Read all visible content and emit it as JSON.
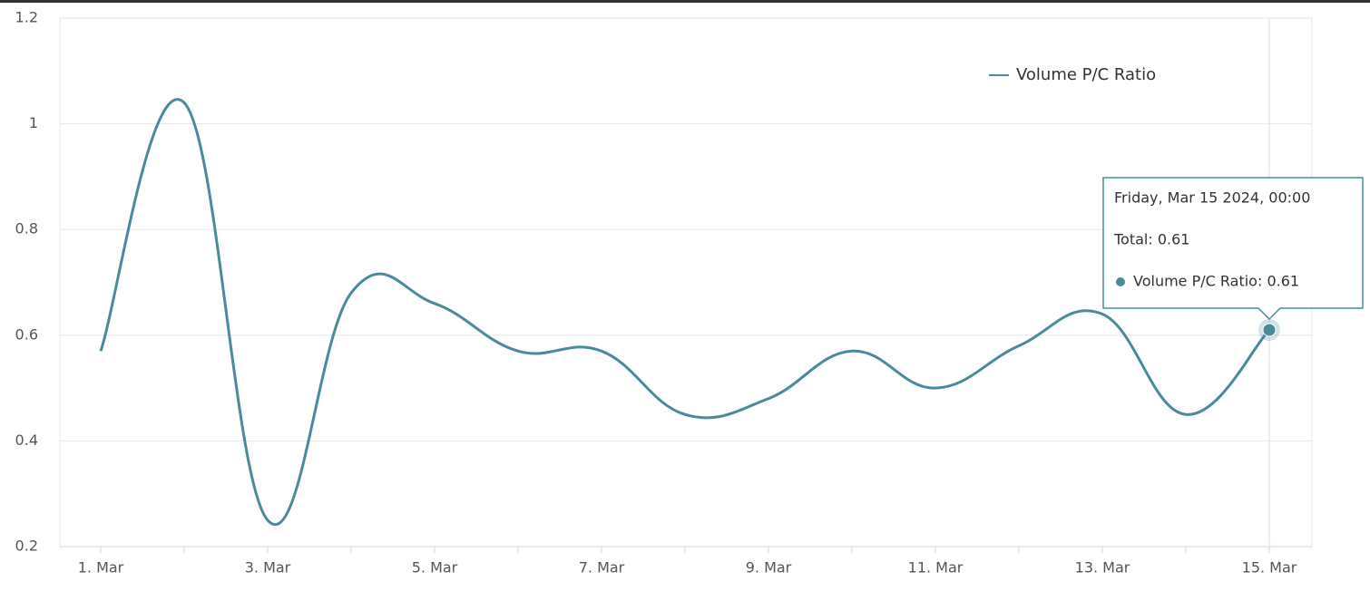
{
  "chart_data": {
    "type": "line",
    "categories": [
      "1. Mar",
      null,
      "3. Mar",
      null,
      "5. Mar",
      null,
      "7. Mar",
      null,
      "9. Mar",
      null,
      "11. Mar",
      null,
      "13. Mar",
      null,
      "15. Mar"
    ],
    "series": [
      {
        "name": "Volume P/C Ratio",
        "color": "#4a8a9c",
        "values": [
          0.57,
          1.04,
          0.25,
          0.68,
          0.66,
          0.57,
          0.57,
          0.45,
          0.48,
          0.57,
          0.5,
          0.58,
          0.64,
          0.45,
          0.61
        ]
      }
    ],
    "ylim": [
      0.2,
      1.2
    ],
    "yticks": [
      0.2,
      0.4,
      0.6,
      0.8,
      1,
      1.2
    ],
    "grid": true,
    "legend": "top-right",
    "tooltip": {
      "title": "Friday, Mar 15 2024, 00:00",
      "total": "Total: 0.61",
      "series": "Volume P/C Ratio: 0.61",
      "index": 14
    }
  }
}
